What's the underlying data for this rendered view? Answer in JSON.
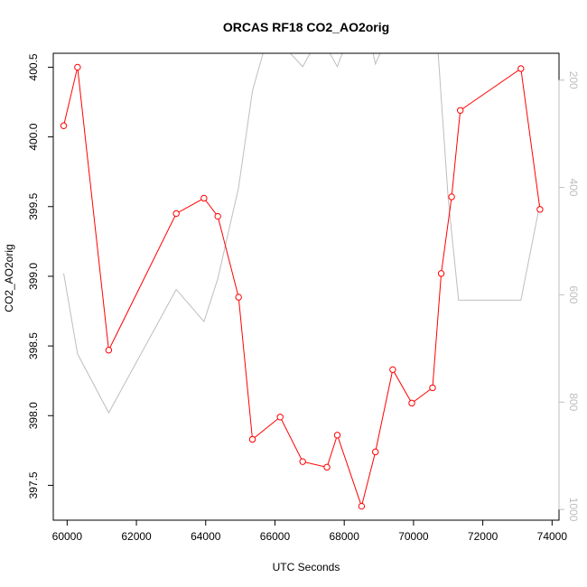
{
  "chart_data": {
    "type": "line",
    "title": "ORCAS RF18 CO2_AO2orig",
    "xlabel": "UTC Seconds",
    "ylabel": "CO2_AO2orig",
    "xlim": [
      59600,
      74200
    ],
    "ylim": [
      397.25,
      400.6
    ],
    "x_ticks": [
      60000,
      62000,
      64000,
      66000,
      68000,
      70000,
      72000,
      74000
    ],
    "y_ticks": [
      397.5,
      398.0,
      398.5,
      399.0,
      399.5,
      400.0,
      400.5
    ],
    "y2_ticks": [
      200,
      400,
      600,
      800,
      1000
    ],
    "y2lim": [
      1020,
      150
    ],
    "colors": {
      "co2": "#ff0000",
      "secondary": "#bebebe",
      "frame": "#000000",
      "right_axis": "#bebebe"
    },
    "series": [
      {
        "type": "line+points",
        "axis": "left",
        "x": [
          59900,
          60300,
          61200,
          63150,
          63950,
          64350,
          64950,
          65350,
          66150,
          66800,
          67500,
          67800,
          68500,
          68900,
          69400,
          69950,
          70550,
          70800,
          71100,
          71350,
          73100,
          73650
        ],
        "values": [
          400.08,
          400.5,
          398.47,
          399.45,
          399.56,
          399.43,
          398.85,
          397.83,
          397.99,
          397.67,
          397.63,
          397.86,
          397.35,
          397.74,
          398.33,
          398.09,
          398.2,
          399.02,
          399.57,
          400.19,
          400.49,
          399.48
        ]
      },
      {
        "type": "line",
        "axis": "right",
        "x": [
          59900,
          60300,
          61200,
          63150,
          63950,
          64350,
          64950,
          65350,
          65700,
          66300,
          66800,
          67100,
          67500,
          67800,
          68000,
          68500,
          68800,
          68900,
          69100,
          70700,
          71000,
          71300,
          73100,
          73650
        ],
        "values": [
          560,
          710,
          820,
          590,
          650,
          570,
          400,
          220,
          140,
          140,
          175,
          140,
          140,
          175,
          140,
          140,
          140,
          170,
          140,
          140,
          420,
          610,
          610,
          430
        ]
      }
    ]
  }
}
